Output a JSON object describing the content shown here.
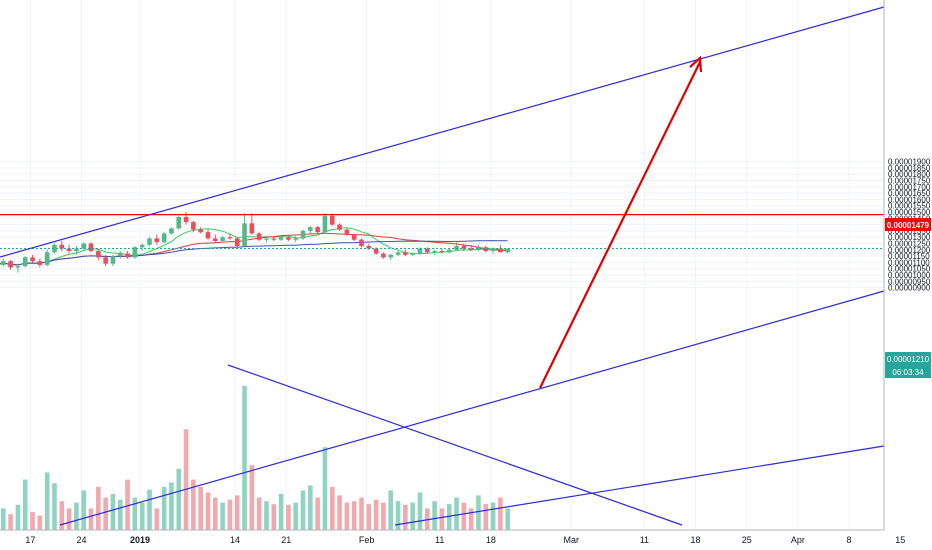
{
  "chart_data": {
    "type": "candlestick",
    "title": "",
    "grid": true,
    "colors": {
      "up": "#53b987",
      "down": "#eb4d5c",
      "vol_up": "#8fd3c0",
      "vol_down": "#f2a9ad",
      "ma_fast": "#34d058",
      "ma_mid": "#e53935",
      "ma_slow": "#3f51b5",
      "trend": "#2b2be0",
      "resistance": "#ff0000",
      "arrow": "#e00000",
      "current_tag": "#26a69a",
      "resist_tag": "#ff0000"
    },
    "y_axis": {
      "ylim": [
        8.9e-06,
        1.91e-05
      ],
      "ticks": [
        "0.00001900",
        "0.00001850",
        "0.00001800",
        "0.00001750",
        "0.00001700",
        "0.00001650",
        "0.00001600",
        "0.00001550",
        "0.00001500",
        "0.00001450",
        "0.00001400",
        "0.00001350",
        "0.00001300",
        "0.00001250",
        "0.00001200",
        "0.00001150",
        "0.00001100",
        "0.00001050",
        "0.00001000",
        "0.00000950",
        "0.00000900"
      ]
    },
    "x_axis": {
      "labels": [
        {
          "text": "17",
          "date": "2018-12-17"
        },
        {
          "text": "24",
          "date": "2018-12-24"
        },
        {
          "text": "2019",
          "date": "2019-01-01"
        },
        {
          "text": "14",
          "date": "2019-01-14"
        },
        {
          "text": "21",
          "date": "2019-01-21"
        },
        {
          "text": "Feb",
          "date": "2019-02-01"
        },
        {
          "text": "11",
          "date": "2019-02-11"
        },
        {
          "text": "18",
          "date": "2019-02-18"
        },
        {
          "text": "Mar",
          "date": "2019-03-01"
        },
        {
          "text": "11",
          "date": "2019-03-11"
        },
        {
          "text": "18",
          "date": "2019-03-18"
        },
        {
          "text": "25",
          "date": "2019-03-25"
        },
        {
          "text": "Apr",
          "date": "2019-04-01"
        },
        {
          "text": "8",
          "date": "2019-04-08"
        },
        {
          "text": "15",
          "date": "2019-04-15"
        }
      ]
    },
    "price_tags": {
      "resistance": "0.00001479",
      "current": "0.00001210",
      "countdown": "06:03:34"
    },
    "resistance_level": 1.479e-05,
    "current_price": 1.21e-05,
    "candles": [
      [
        1.06e-05,
        1.1e-05,
        1.05e-05,
        1.08e-05
      ],
      [
        1.08e-05,
        1.13e-05,
        1.07e-05,
        1.11e-05
      ],
      [
        1.11e-05,
        1.12e-05,
        1.04e-05,
        1.06e-05
      ],
      [
        1.06e-05,
        1.09e-05,
        1.02e-05,
        1.07e-05
      ],
      [
        1.07e-05,
        1.15e-05,
        1.06e-05,
        1.14e-05
      ],
      [
        1.14e-05,
        1.16e-05,
        1.1e-05,
        1.11e-05
      ],
      [
        1.11e-05,
        1.13e-05,
        1.06e-05,
        1.08e-05
      ],
      [
        1.08e-05,
        1.2e-05,
        1.07e-05,
        1.18e-05
      ],
      [
        1.18e-05,
        1.25e-05,
        1.17e-05,
        1.24e-05
      ],
      [
        1.24e-05,
        1.27e-05,
        1.19e-05,
        1.21e-05
      ],
      [
        1.21e-05,
        1.24e-05,
        1.17e-05,
        1.19e-05
      ],
      [
        1.19e-05,
        1.23e-05,
        1.16e-05,
        1.21e-05
      ],
      [
        1.21e-05,
        1.26e-05,
        1.2e-05,
        1.25e-05
      ],
      [
        1.25e-05,
        1.26e-05,
        1.18e-05,
        1.19e-05
      ],
      [
        1.19e-05,
        1.21e-05,
        1.12e-05,
        1.14e-05
      ],
      [
        1.14e-05,
        1.16e-05,
        1.07e-05,
        1.09e-05
      ],
      [
        1.09e-05,
        1.16e-05,
        1.07e-05,
        1.15e-05
      ],
      [
        1.15e-05,
        1.19e-05,
        1.13e-05,
        1.17e-05
      ],
      [
        1.17e-05,
        1.19e-05,
        1.13e-05,
        1.14e-05
      ],
      [
        1.14e-05,
        1.23e-05,
        1.13e-05,
        1.22e-05
      ],
      [
        1.22e-05,
        1.25e-05,
        1.19e-05,
        1.24e-05
      ],
      [
        1.24e-05,
        1.3e-05,
        1.23e-05,
        1.29e-05
      ],
      [
        1.29e-05,
        1.32e-05,
        1.24e-05,
        1.26e-05
      ],
      [
        1.26e-05,
        1.34e-05,
        1.25e-05,
        1.33e-05
      ],
      [
        1.33e-05,
        1.38e-05,
        1.32e-05,
        1.37e-05
      ],
      [
        1.37e-05,
        1.47e-05,
        1.36e-05,
        1.46e-05
      ],
      [
        1.46e-05,
        1.5e-05,
        1.4e-05,
        1.42e-05
      ],
      [
        1.42e-05,
        1.43e-05,
        1.34e-05,
        1.36e-05
      ],
      [
        1.36e-05,
        1.38e-05,
        1.33e-05,
        1.34e-05
      ],
      [
        1.34e-05,
        1.36e-05,
        1.28e-05,
        1.29e-05
      ],
      [
        1.29e-05,
        1.32e-05,
        1.25e-05,
        1.27e-05
      ],
      [
        1.27e-05,
        1.31e-05,
        1.26e-05,
        1.3e-05
      ],
      [
        1.3e-05,
        1.33e-05,
        1.28e-05,
        1.29e-05
      ],
      [
        1.29e-05,
        1.3e-05,
        1.21e-05,
        1.23e-05
      ],
      [
        1.23e-05,
        1.49e-05,
        1.22e-05,
        1.41e-05
      ],
      [
        1.41e-05,
        1.49e-05,
        1.32e-05,
        1.33e-05
      ],
      [
        1.33e-05,
        1.34e-05,
        1.27e-05,
        1.28e-05
      ],
      [
        1.28e-05,
        1.31e-05,
        1.26e-05,
        1.29e-05
      ],
      [
        1.29e-05,
        1.31e-05,
        1.27e-05,
        1.28e-05
      ],
      [
        1.28e-05,
        1.32e-05,
        1.27e-05,
        1.3e-05
      ],
      [
        1.3e-05,
        1.31e-05,
        1.27e-05,
        1.28e-05
      ],
      [
        1.28e-05,
        1.31e-05,
        1.26e-05,
        1.29e-05
      ],
      [
        1.29e-05,
        1.36e-05,
        1.28e-05,
        1.35e-05
      ],
      [
        1.35e-05,
        1.39e-05,
        1.33e-05,
        1.38e-05
      ],
      [
        1.38e-05,
        1.39e-05,
        1.33e-05,
        1.34e-05
      ],
      [
        1.34e-05,
        1.49e-05,
        1.33e-05,
        1.47e-05
      ],
      [
        1.47e-05,
        1.49e-05,
        1.39e-05,
        1.4e-05
      ],
      [
        1.4e-05,
        1.41e-05,
        1.35e-05,
        1.36e-05
      ],
      [
        1.36e-05,
        1.37e-05,
        1.31e-05,
        1.32e-05
      ],
      [
        1.32e-05,
        1.33e-05,
        1.27e-05,
        1.28e-05
      ],
      [
        1.28e-05,
        1.29e-05,
        1.22e-05,
        1.23e-05
      ],
      [
        1.23e-05,
        1.25e-05,
        1.2e-05,
        1.21e-05
      ],
      [
        1.21e-05,
        1.22e-05,
        1.16e-05,
        1.17e-05
      ],
      [
        1.17e-05,
        1.18e-05,
        1.13e-05,
        1.14e-05
      ],
      [
        1.14e-05,
        1.17e-05,
        1.12e-05,
        1.16e-05
      ],
      [
        1.16e-05,
        1.19e-05,
        1.15e-05,
        1.18e-05
      ],
      [
        1.18e-05,
        1.2e-05,
        1.15e-05,
        1.16e-05
      ],
      [
        1.16e-05,
        1.18e-05,
        1.15e-05,
        1.17e-05
      ],
      [
        1.17e-05,
        1.22e-05,
        1.16e-05,
        1.21e-05
      ],
      [
        1.21e-05,
        1.22e-05,
        1.17e-05,
        1.18e-05
      ],
      [
        1.18e-05,
        1.2e-05,
        1.16e-05,
        1.19e-05
      ],
      [
        1.19e-05,
        1.21e-05,
        1.17e-05,
        1.18e-05
      ],
      [
        1.18e-05,
        1.21e-05,
        1.17e-05,
        1.2e-05
      ],
      [
        1.2e-05,
        1.26e-05,
        1.19e-05,
        1.23e-05
      ],
      [
        1.23e-05,
        1.25e-05,
        1.19e-05,
        1.21e-05
      ],
      [
        1.21e-05,
        1.24e-05,
        1.19e-05,
        1.2e-05
      ],
      [
        1.2e-05,
        1.24e-05,
        1.19e-05,
        1.22e-05
      ],
      [
        1.22e-05,
        1.23e-05,
        1.18e-05,
        1.19e-05
      ],
      [
        1.19e-05,
        1.22e-05,
        1.17e-05,
        1.21e-05
      ],
      [
        1.21e-05,
        1.24e-05,
        1.18e-05,
        1.18e-05
      ],
      [
        1.18e-05,
        1.21e-05,
        1.17e-05,
        1.21e-05
      ]
    ],
    "volumes": [
      48,
      30,
      22,
      35,
      70,
      25,
      20,
      80,
      65,
      40,
      30,
      38,
      55,
      30,
      60,
      45,
      50,
      42,
      70,
      45,
      38,
      56,
      30,
      60,
      66,
      85,
      140,
      70,
      60,
      52,
      45,
      38,
      42,
      48,
      200,
      90,
      45,
      40,
      36,
      50,
      35,
      38,
      55,
      62,
      45,
      115,
      60,
      48,
      38,
      40,
      45,
      36,
      42,
      38,
      55,
      40,
      35,
      38,
      52,
      30,
      40,
      30,
      36,
      45,
      38,
      30,
      48,
      36,
      38,
      45,
      30
    ]
  }
}
